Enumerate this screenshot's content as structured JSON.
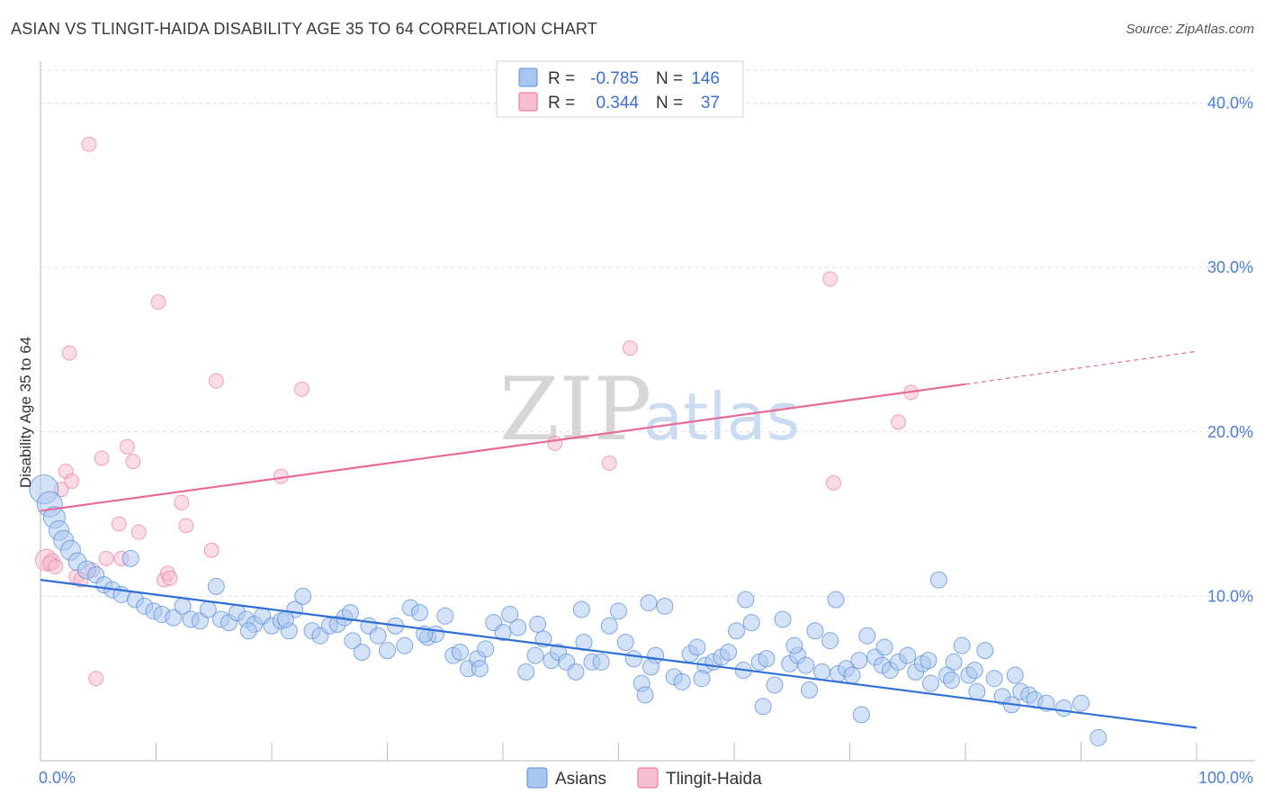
{
  "title": "ASIAN VS TLINGIT-HAIDA DISABILITY AGE 35 TO 64 CORRELATION CHART",
  "source": "Source: ZipAtlas.com",
  "watermark": {
    "zip": "ZIP",
    "atlas": "atlas"
  },
  "colors": {
    "asians": "#5b8fd8",
    "asians_fill": "#a9c6f0",
    "tlingit": "#e86a9a",
    "tlingit_fill": "#f6bfd2",
    "tick": "#4a7fd4"
  },
  "legend": {
    "asians": {
      "r_label": "R =",
      "r_value": "-0.785",
      "n_label": "N =",
      "n_value": "146"
    },
    "tlingit": {
      "r_label": "R =",
      "r_value": "0.344",
      "n_label": "N =",
      "n_value": "37"
    }
  },
  "chart_data": {
    "type": "scatter",
    "title": "ASIAN VS TLINGIT-HAIDA DISABILITY AGE 35 TO 64 CORRELATION CHART",
    "xlabel": "",
    "ylabel": "Disability Age 35 to 64",
    "xlim": [
      0,
      100
    ],
    "ylim": [
      0,
      42
    ],
    "x_tick_labels": [
      "0.0%",
      "100.0%"
    ],
    "y_ticks": [
      10,
      20,
      30,
      40
    ],
    "y_tick_labels": [
      "10.0%",
      "20.0%",
      "30.0%",
      "40.0%"
    ],
    "grid": true,
    "series": [
      {
        "name": "Asians",
        "r": -0.785,
        "n": 146,
        "trend": {
          "x0": 0,
          "y0": 11.0,
          "x1": 100,
          "y1": 2.0
        },
        "points": [
          [
            0.3,
            16.5,
            14
          ],
          [
            0.8,
            15.6,
            12
          ],
          [
            1.2,
            14.8,
            10
          ],
          [
            1.6,
            14.0,
            9
          ],
          [
            2.0,
            13.4,
            9
          ],
          [
            2.6,
            12.8,
            9
          ],
          [
            3.2,
            12.1,
            8
          ],
          [
            4.0,
            11.6,
            8
          ],
          [
            4.8,
            11.3,
            7
          ],
          [
            5.5,
            10.7,
            7
          ],
          [
            6.2,
            10.4,
            7
          ],
          [
            7.0,
            10.1,
            7
          ],
          [
            7.8,
            12.3,
            7
          ],
          [
            8.2,
            9.8,
            7
          ],
          [
            9.0,
            9.4,
            7
          ],
          [
            9.8,
            9.1,
            7
          ],
          [
            10.5,
            8.9,
            7
          ],
          [
            11.5,
            8.7,
            7
          ],
          [
            12.3,
            9.4,
            7
          ],
          [
            13.0,
            8.6,
            7
          ],
          [
            13.8,
            8.5,
            7
          ],
          [
            14.5,
            9.2,
            7
          ],
          [
            15.2,
            10.6,
            7
          ],
          [
            15.6,
            8.6,
            7
          ],
          [
            16.3,
            8.4,
            7
          ],
          [
            17.0,
            9.0,
            7
          ],
          [
            17.8,
            8.6,
            7
          ],
          [
            18.5,
            8.3,
            7
          ],
          [
            19.2,
            8.8,
            7
          ],
          [
            20.0,
            8.2,
            7
          ],
          [
            20.8,
            8.5,
            7
          ],
          [
            21.5,
            7.9,
            7
          ],
          [
            22.0,
            9.2,
            7
          ],
          [
            22.7,
            10.0,
            7
          ],
          [
            23.5,
            7.9,
            7
          ],
          [
            24.2,
            7.6,
            7
          ],
          [
            25.0,
            8.2,
            7
          ],
          [
            25.7,
            8.3,
            7
          ],
          [
            26.3,
            8.7,
            7
          ],
          [
            27.0,
            7.3,
            7
          ],
          [
            27.8,
            6.6,
            7
          ],
          [
            28.4,
            8.2,
            7
          ],
          [
            29.2,
            7.6,
            7
          ],
          [
            30.0,
            6.7,
            7
          ],
          [
            30.7,
            8.2,
            7
          ],
          [
            31.5,
            7.0,
            7
          ],
          [
            32.0,
            9.3,
            7
          ],
          [
            32.8,
            9.0,
            7
          ],
          [
            33.5,
            7.5,
            7
          ],
          [
            34.2,
            7.7,
            7
          ],
          [
            35.0,
            8.8,
            7
          ],
          [
            35.7,
            6.4,
            7
          ],
          [
            36.3,
            6.6,
            7
          ],
          [
            37.0,
            5.6,
            7
          ],
          [
            37.8,
            6.2,
            7
          ],
          [
            38.5,
            6.8,
            7
          ],
          [
            39.2,
            8.4,
            7
          ],
          [
            40.0,
            7.8,
            7
          ],
          [
            40.6,
            8.9,
            7
          ],
          [
            41.3,
            8.1,
            7
          ],
          [
            42.0,
            5.4,
            7
          ],
          [
            42.8,
            6.4,
            7
          ],
          [
            43.5,
            7.4,
            7
          ],
          [
            44.2,
            6.1,
            7
          ],
          [
            44.8,
            6.6,
            7
          ],
          [
            45.5,
            6.0,
            7
          ],
          [
            46.3,
            5.4,
            7
          ],
          [
            47.0,
            7.2,
            7
          ],
          [
            47.7,
            6.0,
            7
          ],
          [
            48.5,
            6.0,
            7
          ],
          [
            49.2,
            8.2,
            7
          ],
          [
            50.0,
            9.1,
            7
          ],
          [
            50.6,
            7.2,
            7
          ],
          [
            51.3,
            6.2,
            7
          ],
          [
            52.0,
            4.7,
            7
          ],
          [
            52.6,
            9.6,
            7
          ],
          [
            53.2,
            6.4,
            7
          ],
          [
            54.0,
            9.4,
            7
          ],
          [
            54.8,
            5.1,
            7
          ],
          [
            55.5,
            4.8,
            7
          ],
          [
            56.2,
            6.5,
            7
          ],
          [
            56.8,
            6.9,
            7
          ],
          [
            57.5,
            5.8,
            7
          ],
          [
            58.2,
            6.0,
            7
          ],
          [
            58.9,
            6.3,
            7
          ],
          [
            59.5,
            6.6,
            7
          ],
          [
            60.2,
            7.9,
            7
          ],
          [
            60.8,
            5.5,
            7
          ],
          [
            61.5,
            8.4,
            7
          ],
          [
            62.2,
            6.0,
            7
          ],
          [
            62.8,
            6.2,
            7
          ],
          [
            63.5,
            4.6,
            7
          ],
          [
            64.2,
            8.6,
            7
          ],
          [
            64.8,
            5.9,
            7
          ],
          [
            65.5,
            6.4,
            7
          ],
          [
            66.2,
            5.8,
            7
          ],
          [
            67.0,
            7.9,
            7
          ],
          [
            67.6,
            5.4,
            7
          ],
          [
            68.3,
            7.3,
            7
          ],
          [
            69.0,
            5.3,
            7
          ],
          [
            69.7,
            5.6,
            7
          ],
          [
            70.2,
            5.2,
            7
          ],
          [
            70.8,
            6.1,
            7
          ],
          [
            71.5,
            7.6,
            7
          ],
          [
            72.2,
            6.3,
            7
          ],
          [
            72.8,
            5.8,
            7
          ],
          [
            73.5,
            5.5,
            7
          ],
          [
            74.2,
            6.0,
            7
          ],
          [
            75.0,
            6.4,
            7
          ],
          [
            75.7,
            5.4,
            7
          ],
          [
            76.3,
            5.9,
            7
          ],
          [
            77.0,
            4.7,
            7
          ],
          [
            77.7,
            11.0,
            7
          ],
          [
            78.4,
            5.2,
            7
          ],
          [
            79.0,
            6.0,
            7
          ],
          [
            79.7,
            7.0,
            7
          ],
          [
            80.3,
            5.2,
            7
          ],
          [
            81.0,
            4.2,
            7
          ],
          [
            81.7,
            6.7,
            7
          ],
          [
            82.5,
            5.0,
            7
          ],
          [
            83.2,
            3.9,
            7
          ],
          [
            84.0,
            3.4,
            7
          ],
          [
            84.8,
            4.2,
            7
          ],
          [
            85.5,
            4.0,
            7
          ],
          [
            86.0,
            3.7,
            7
          ],
          [
            87.0,
            3.5,
            7
          ],
          [
            88.5,
            3.2,
            7
          ],
          [
            90.0,
            3.5,
            7
          ],
          [
            91.5,
            1.4,
            7
          ],
          [
            18.0,
            7.9,
            7
          ],
          [
            21.2,
            8.6,
            7
          ],
          [
            26.8,
            9.0,
            7
          ],
          [
            33.2,
            7.7,
            7
          ],
          [
            38.0,
            5.6,
            7
          ],
          [
            43.0,
            8.3,
            7
          ],
          [
            46.8,
            9.2,
            7
          ],
          [
            52.8,
            5.7,
            7
          ],
          [
            57.2,
            5.0,
            7
          ],
          [
            61.0,
            9.8,
            7
          ],
          [
            65.2,
            7.0,
            7
          ],
          [
            68.8,
            9.8,
            7
          ],
          [
            73.0,
            6.9,
            7
          ],
          [
            76.8,
            6.1,
            7
          ],
          [
            80.8,
            5.5,
            7
          ],
          [
            84.3,
            5.2,
            7
          ],
          [
            62.5,
            3.3,
            7
          ],
          [
            71.0,
            2.8,
            7
          ],
          [
            52.3,
            4.0,
            7
          ],
          [
            66.5,
            4.3,
            7
          ],
          [
            78.8,
            4.9,
            7
          ]
        ]
      },
      {
        "name": "Tlingit-Haida",
        "r": 0.344,
        "n": 37,
        "trend": {
          "x0": 0,
          "y0": 15.2,
          "x1": 80,
          "y1": 22.9,
          "dashed_to_x": 100,
          "dashed_to_y": 24.9
        },
        "points": [
          [
            0.5,
            12.2,
            12
          ],
          [
            1.0,
            12.1,
            9
          ],
          [
            1.8,
            16.5,
            8
          ],
          [
            2.2,
            17.6,
            8
          ],
          [
            2.5,
            24.8,
            8
          ],
          [
            2.7,
            17.0,
            8
          ],
          [
            3.1,
            11.2,
            8
          ],
          [
            3.5,
            11.0,
            8
          ],
          [
            4.2,
            37.5,
            8
          ],
          [
            4.5,
            11.6,
            8
          ],
          [
            4.8,
            5.0,
            8
          ],
          [
            5.3,
            18.4,
            8
          ],
          [
            5.7,
            12.3,
            8
          ],
          [
            6.8,
            14.4,
            8
          ],
          [
            7.0,
            12.3,
            8
          ],
          [
            7.5,
            19.1,
            8
          ],
          [
            8.0,
            18.2,
            8
          ],
          [
            8.5,
            13.9,
            8
          ],
          [
            10.2,
            27.9,
            8
          ],
          [
            10.7,
            11.0,
            8
          ],
          [
            11.0,
            11.4,
            8
          ],
          [
            12.2,
            15.7,
            8
          ],
          [
            12.6,
            14.3,
            8
          ],
          [
            14.8,
            12.8,
            8
          ],
          [
            15.2,
            23.1,
            8
          ],
          [
            20.8,
            17.3,
            8
          ],
          [
            22.6,
            22.6,
            8
          ],
          [
            44.5,
            19.3,
            8
          ],
          [
            49.2,
            18.1,
            8
          ],
          [
            51.0,
            25.1,
            8
          ],
          [
            68.3,
            29.3,
            8
          ],
          [
            68.6,
            16.9,
            8
          ],
          [
            74.2,
            20.6,
            8
          ],
          [
            75.3,
            22.4,
            8
          ],
          [
            0.8,
            12.0,
            8
          ],
          [
            1.3,
            11.8,
            8
          ],
          [
            11.2,
            11.1,
            8
          ]
        ]
      }
    ],
    "legend_placement": "top-center"
  },
  "bottom_legend": {
    "asians": "Asians",
    "tlingit": "Tlingit-Haida"
  }
}
